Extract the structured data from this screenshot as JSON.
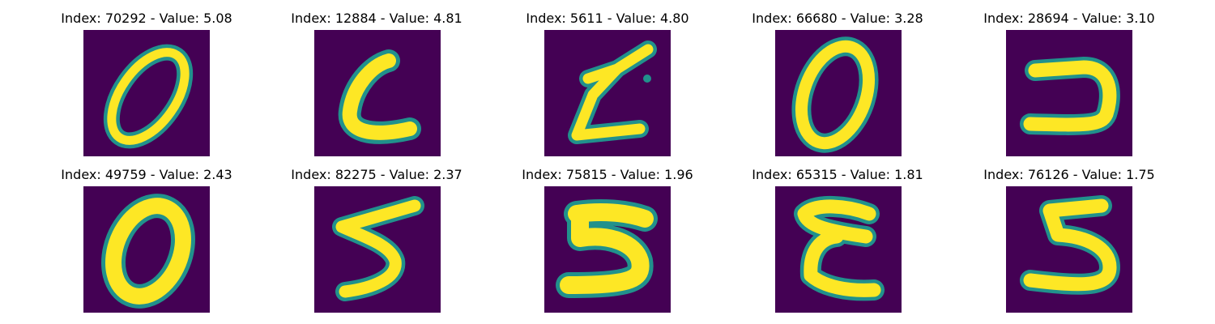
{
  "colors": {
    "background": "#440154",
    "edge": "#21918c",
    "stroke": "#fde725"
  },
  "panels": [
    {
      "title": "Index: 70292 - Value: 5.08",
      "digit": "0"
    },
    {
      "title": "Index: 12884 - Value: 4.81",
      "digit": "c"
    },
    {
      "title": "Index: 5611 - Value: 4.80",
      "digit": "Z"
    },
    {
      "title": "Index: 66680 - Value: 3.28",
      "digit": "0"
    },
    {
      "title": "Index: 28694 - Value: 3.10",
      "digit": "⊃"
    },
    {
      "title": "Index: 49759 - Value: 2.43",
      "digit": "0"
    },
    {
      "title": "Index: 82275 - Value: 2.37",
      "digit": "5"
    },
    {
      "title": "Index: 75815 - Value: 1.96",
      "digit": "5"
    },
    {
      "title": "Index: 65315 - Value: 1.81",
      "digit": "E"
    },
    {
      "title": "Index: 76126 - Value: 1.75",
      "digit": "5"
    }
  ]
}
